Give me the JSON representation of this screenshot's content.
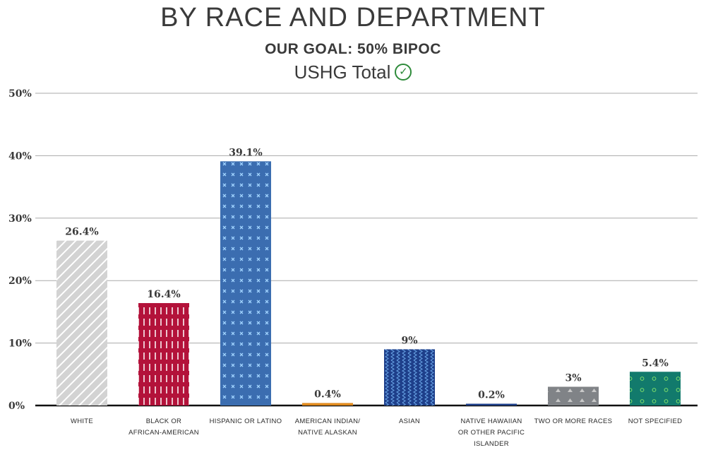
{
  "titles": {
    "main": "BY RACE AND DEPARTMENT",
    "goal": "OUR GOAL: 50% BIPOC",
    "subtitle": "USHG Total",
    "check_icon": "check-circle-icon"
  },
  "chart_data": {
    "type": "bar",
    "categories": [
      "WHITE",
      "BLACK OR AFRICAN-AMERICAN",
      "HISPANIC OR LATINO",
      "AMERICAN INDIAN/ NATIVE ALASKAN",
      "ASIAN",
      "NATIVE HAWAIIAN OR OTHER PACIFIC ISLANDER",
      "TWO OR MORE RACES",
      "NOT SPECIFIED"
    ],
    "category_lines": [
      [
        "WHITE"
      ],
      [
        "BLACK OR",
        "AFRICAN-AMERICAN"
      ],
      [
        "HISPANIC OR LATINO"
      ],
      [
        "AMERICAN INDIAN/",
        "NATIVE ALASKAN"
      ],
      [
        "ASIAN"
      ],
      [
        "NATIVE HAWAIIAN",
        "OR OTHER PACIFIC",
        "ISLANDER"
      ],
      [
        "TWO OR MORE RACES"
      ],
      [
        "NOT SPECIFIED"
      ]
    ],
    "values": [
      26.4,
      16.4,
      39.1,
      0.4,
      9,
      0.2,
      3,
      5.4
    ],
    "value_labels": [
      "26.4%",
      "16.4%",
      "39.1%",
      "0.4%",
      "9%",
      "0.2%",
      "3%",
      "5.4%"
    ],
    "colors": [
      "#d3d3d3",
      "#b3123a",
      "#3b6db0",
      "#e08a1e",
      "#1e3f8a",
      "#1e3f8a",
      "#808387",
      "#127a6c"
    ],
    "patterns": [
      "diagonal-stripes",
      "vertical-dashes",
      "crosses",
      "solid",
      "zigzag",
      "solid",
      "triangles",
      "circles"
    ],
    "ylim": [
      0,
      50
    ],
    "yticks": [
      0,
      10,
      20,
      30,
      40,
      50
    ],
    "ytick_labels": [
      "0%",
      "10%",
      "20%",
      "30%",
      "40%",
      "50%"
    ],
    "grid": true,
    "xlabel": "",
    "ylabel": ""
  }
}
